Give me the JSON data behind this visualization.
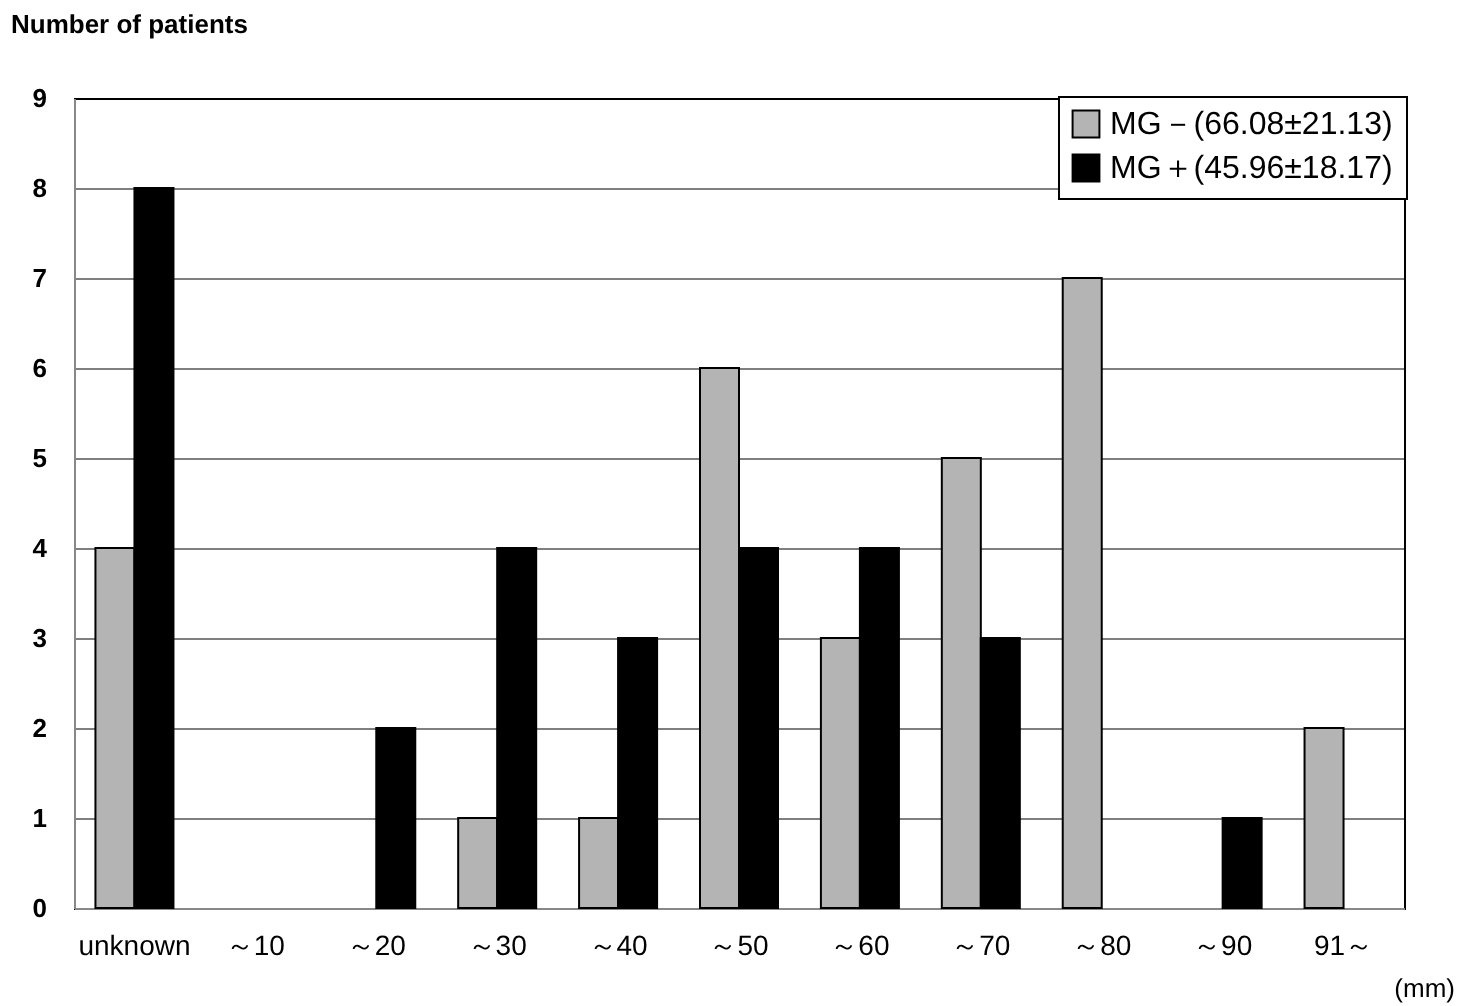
{
  "chart_data": {
    "type": "bar",
    "ylabel": "Number of patients",
    "xlabel": "(mm)",
    "categories": [
      "unknown",
      "～10",
      "～20",
      "～30",
      "～40",
      "～50",
      "～60",
      "～70",
      "～80",
      "～90",
      "91～"
    ],
    "series": [
      {
        "name": "MG－(66.08±21.13)",
        "color": "#b4b4b4",
        "values": [
          4,
          0,
          0,
          1,
          1,
          6,
          3,
          5,
          7,
          0,
          2
        ]
      },
      {
        "name": "MG＋(45.96±18.17)",
        "color": "#000000",
        "values": [
          8,
          0,
          2,
          4,
          3,
          4,
          4,
          3,
          0,
          1,
          0
        ]
      }
    ],
    "ylim": [
      0,
      9
    ],
    "yticks": [
      0,
      1,
      2,
      3,
      4,
      5,
      6,
      7,
      8,
      9
    ],
    "grid": "y",
    "legend": "top right"
  }
}
